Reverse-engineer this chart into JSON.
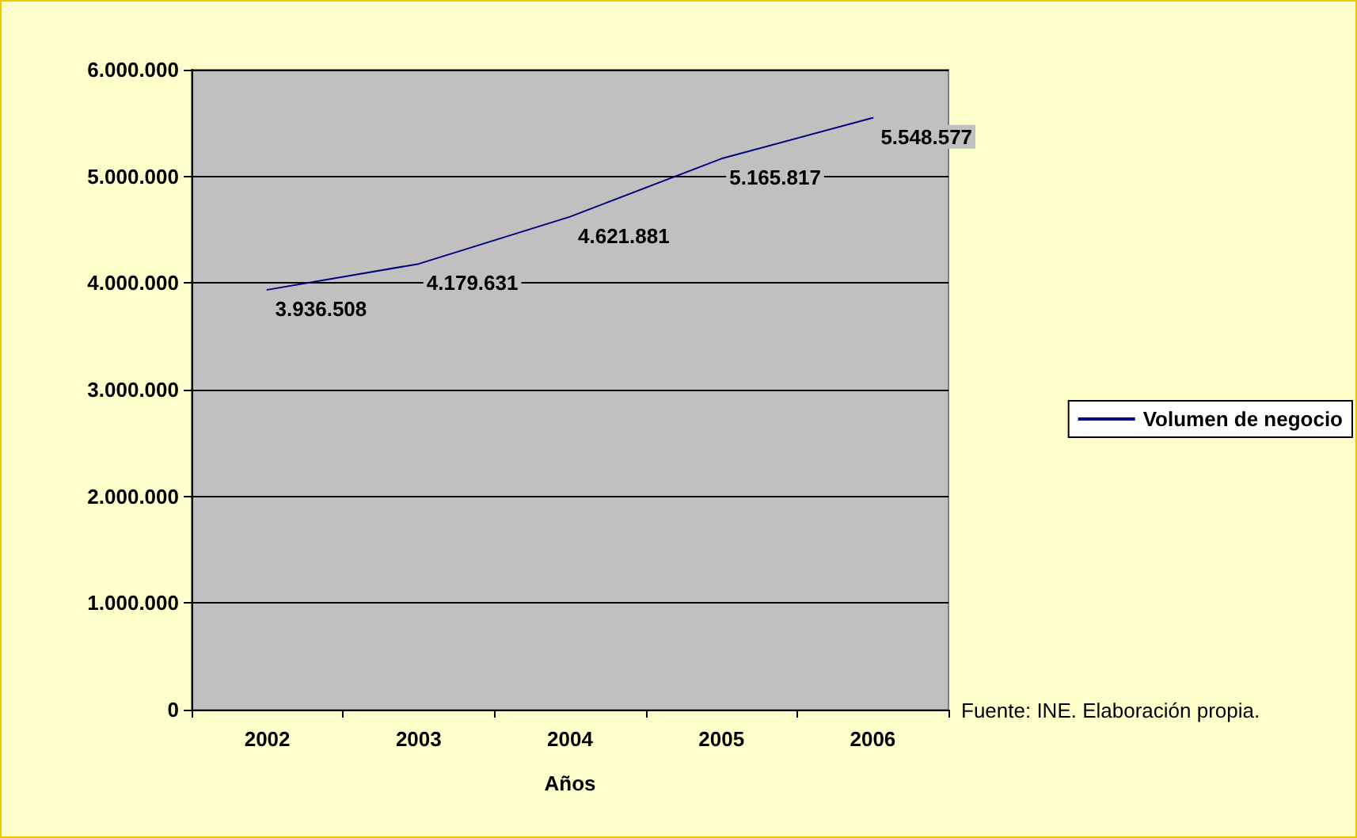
{
  "chart_data": {
    "type": "line",
    "xlabel": "Años",
    "categories": [
      "2002",
      "2003",
      "2004",
      "2005",
      "2006"
    ],
    "series": [
      {
        "name": "Volumen de negocio",
        "color": "#000080",
        "values": [
          3936508,
          4179631,
          4621881,
          5165817,
          5548577
        ],
        "value_labels": [
          "3.936.508",
          "4.179.631",
          "4.621.881",
          "5.165.817",
          "5.548.577"
        ]
      }
    ],
    "ylim": [
      0,
      6000000
    ],
    "yticks": [
      {
        "value": 0,
        "label": "0"
      },
      {
        "value": 1000000,
        "label": "1.000.000"
      },
      {
        "value": 2000000,
        "label": "2.000.000"
      },
      {
        "value": 3000000,
        "label": "3.000.000"
      },
      {
        "value": 4000000,
        "label": "4.000.000"
      },
      {
        "value": 5000000,
        "label": "5.000.000"
      },
      {
        "value": 6000000,
        "label": "6.000.000"
      }
    ],
    "grid": "y",
    "legend": "right",
    "marker": "none",
    "line_style": "solid",
    "annotations": [
      "Fuente: INE. Elaboración propia."
    ]
  }
}
